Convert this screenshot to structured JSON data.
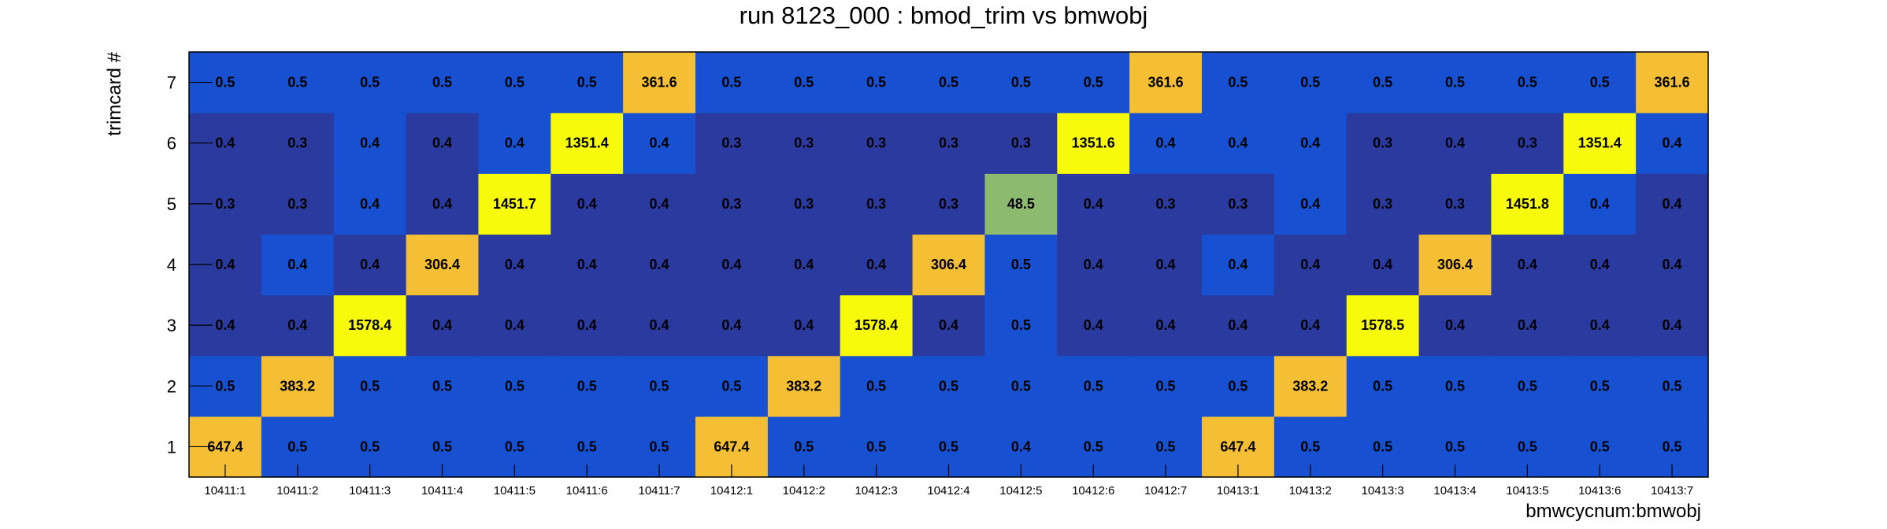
{
  "chart_data": {
    "type": "heatmap",
    "title": "run 8123_000 : bmod_trim vs bmwobj",
    "xlabel": "bmwcycnum:bmwobj",
    "ylabel": "trimcard #",
    "x_categories": [
      "10411:1",
      "10411:2",
      "10411:3",
      "10411:4",
      "10411:5",
      "10411:6",
      "10411:7",
      "10412:1",
      "10412:2",
      "10412:3",
      "10412:4",
      "10412:5",
      "10412:6",
      "10412:7",
      "10413:1",
      "10413:2",
      "10413:3",
      "10413:4",
      "10413:5",
      "10413:6",
      "10413:7"
    ],
    "y_categories": [
      "1",
      "2",
      "3",
      "4",
      "5",
      "6",
      "7"
    ],
    "values": [
      [
        "647.4",
        "0.5",
        "0.5",
        "0.5",
        "0.5",
        "0.5",
        "0.5",
        "647.4",
        "0.5",
        "0.5",
        "0.5",
        "0.4",
        "0.5",
        "0.5",
        "647.4",
        "0.5",
        "0.5",
        "0.5",
        "0.5",
        "0.5",
        "0.5"
      ],
      [
        "0.5",
        "383.2",
        "0.5",
        "0.5",
        "0.5",
        "0.5",
        "0.5",
        "0.5",
        "383.2",
        "0.5",
        "0.5",
        "0.5",
        "0.5",
        "0.5",
        "0.5",
        "383.2",
        "0.5",
        "0.5",
        "0.5",
        "0.5",
        "0.5"
      ],
      [
        "0.4",
        "0.4",
        "1578.4",
        "0.4",
        "0.4",
        "0.4",
        "0.4",
        "0.4",
        "0.4",
        "1578.4",
        "0.4",
        "0.5",
        "0.4",
        "0.4",
        "0.4",
        "0.4",
        "1578.5",
        "0.4",
        "0.4",
        "0.4",
        "0.4"
      ],
      [
        "0.4",
        "0.4",
        "0.4",
        "306.4",
        "0.4",
        "0.4",
        "0.4",
        "0.4",
        "0.4",
        "0.4",
        "306.4",
        "0.5",
        "0.4",
        "0.4",
        "0.4",
        "0.4",
        "0.4",
        "306.4",
        "0.4",
        "0.4",
        "0.4"
      ],
      [
        "0.3",
        "0.3",
        "0.4",
        "0.4",
        "1451.7",
        "0.4",
        "0.4",
        "0.3",
        "0.3",
        "0.3",
        "0.3",
        "48.5",
        "0.4",
        "0.3",
        "0.3",
        "0.4",
        "0.3",
        "0.3",
        "1451.8",
        "0.4",
        "0.4"
      ],
      [
        "0.4",
        "0.3",
        "0.4",
        "0.4",
        "0.4",
        "1351.4",
        "0.4",
        "0.3",
        "0.3",
        "0.3",
        "0.3",
        "0.3",
        "1351.6",
        "0.4",
        "0.4",
        "0.4",
        "0.3",
        "0.4",
        "0.3",
        "1351.4",
        "0.4"
      ],
      [
        "0.5",
        "0.5",
        "0.5",
        "0.5",
        "0.5",
        "0.5",
        "361.6",
        "0.5",
        "0.5",
        "0.5",
        "0.5",
        "0.5",
        "0.5",
        "361.6",
        "0.5",
        "0.5",
        "0.5",
        "0.5",
        "0.5",
        "0.5",
        "361.6"
      ]
    ],
    "colors": {
      "0.3": "#2a3a9e",
      "0.4_low": "#2a3a9e",
      "0.4_high": "#1750d0",
      "0.5": "#1750d0",
      "48.5": "#8cba6e",
      "306-648": "#f5bf35",
      "1351-1579": "#f8fa0c"
    }
  }
}
